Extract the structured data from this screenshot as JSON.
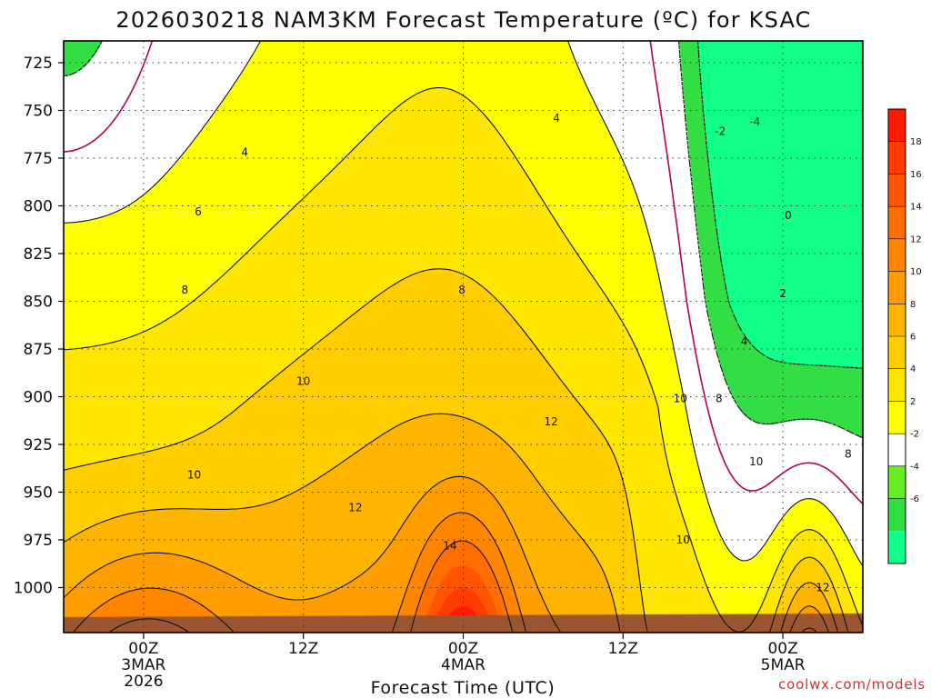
{
  "chart_data": {
    "type": "contour",
    "title": "2026030218 NAM3KM Forecast Temperature (ºC) for KSAC",
    "xlabel": "Forecast Time (UTC)",
    "x_ticks": [
      {
        "hour": 6,
        "lines": [
          "00Z",
          "3MAR",
          "2026"
        ]
      },
      {
        "hour": 18,
        "lines": [
          "12Z"
        ]
      },
      {
        "hour": 30,
        "lines": [
          "00Z",
          "4MAR"
        ]
      },
      {
        "hour": 42,
        "lines": [
          "12Z"
        ]
      },
      {
        "hour": 54,
        "lines": [
          "00Z",
          "5MAR"
        ]
      }
    ],
    "x_range": [
      0,
      60
    ],
    "y_ticks": [
      725,
      750,
      775,
      800,
      825,
      850,
      875,
      900,
      925,
      950,
      975,
      1000
    ],
    "y_range": [
      720,
      1020
    ],
    "y_inverted": true,
    "units": "ºC",
    "grid": true,
    "colorbar": {
      "position": "right",
      "labels": [
        "18",
        "16",
        "14",
        "12",
        "10",
        "8",
        "6",
        "4",
        "2",
        "-2",
        "-4",
        "-6"
      ],
      "colors": [
        "#ff1a00",
        "#ff3c00",
        "#ff5500",
        "#ff6e00",
        "#ff8400",
        "#ff9c00",
        "#ffb400",
        "#ffcd00",
        "#ffe600",
        "#ffff00",
        "#ffffff",
        "#66ee22",
        "#33dd44",
        "#11ff88"
      ]
    },
    "contour_levels": [
      -4,
      -2,
      0,
      2,
      4,
      6,
      8,
      10,
      12,
      14
    ],
    "contour_labels": [
      {
        "text": "4",
        "hour": 13.6,
        "p": 772
      },
      {
        "text": "6",
        "hour": 10.1,
        "p": 803
      },
      {
        "text": "8",
        "hour": 9.1,
        "p": 844
      },
      {
        "text": "8",
        "hour": 29.9,
        "p": 844
      },
      {
        "text": "4",
        "hour": 37.0,
        "p": 754
      },
      {
        "text": "10",
        "hour": 18.0,
        "p": 892
      },
      {
        "text": "10",
        "hour": 9.8,
        "p": 941
      },
      {
        "text": "12",
        "hour": 21.9,
        "p": 958
      },
      {
        "text": "14",
        "hour": 29.0,
        "p": 978
      },
      {
        "text": "10",
        "hour": 46.3,
        "p": 901
      },
      {
        "text": "8",
        "hour": 49.2,
        "p": 901
      },
      {
        "text": "12",
        "hour": 36.6,
        "p": 913
      },
      {
        "text": "4",
        "hour": 51.1,
        "p": 871
      },
      {
        "text": "2",
        "hour": 54.0,
        "p": 846
      },
      {
        "text": "0",
        "hour": 54.4,
        "p": 805
      },
      {
        "text": "-2",
        "hour": 49.3,
        "p": 761
      },
      {
        "text": "-4",
        "hour": 51.9,
        "p": 756
      },
      {
        "text": "10",
        "hour": 52.0,
        "p": 934
      },
      {
        "text": "8",
        "hour": 58.9,
        "p": 930
      },
      {
        "text": "10",
        "hour": 46.5,
        "p": 975
      },
      {
        "text": "12",
        "hour": 57.0,
        "p": 1000
      }
    ],
    "fields": {
      "surface_color": "#9b5530",
      "max_temp_c": 19,
      "min_temp_c": -5
    }
  },
  "credit": "coolwx.com/models"
}
